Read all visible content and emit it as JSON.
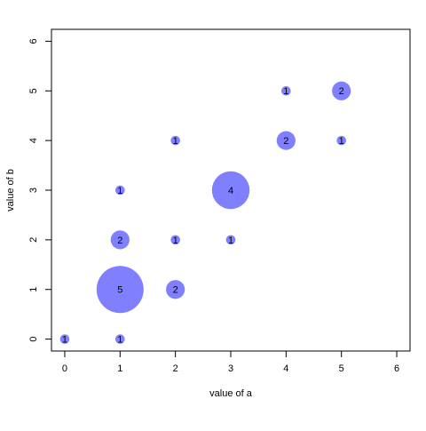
{
  "chart_data": {
    "type": "scatter",
    "x": [
      0,
      1,
      1,
      2,
      1,
      2,
      3,
      1,
      3,
      2,
      4,
      5,
      4,
      5
    ],
    "y": [
      0,
      0,
      1,
      1,
      2,
      2,
      2,
      3,
      3,
      4,
      4,
      4,
      5,
      5
    ],
    "sizes": [
      1,
      1,
      5,
      2,
      2,
      1,
      1,
      1,
      4,
      1,
      2,
      1,
      1,
      2
    ],
    "color": "#8080ff",
    "xlabel": "value of a",
    "ylabel": "value of b",
    "xlim": [
      -0.24,
      6.24
    ],
    "ylim": [
      -0.24,
      6.24
    ],
    "xticks": [
      0,
      1,
      2,
      3,
      4,
      5,
      6
    ],
    "yticks": [
      0,
      1,
      2,
      3,
      4,
      5,
      6
    ]
  }
}
